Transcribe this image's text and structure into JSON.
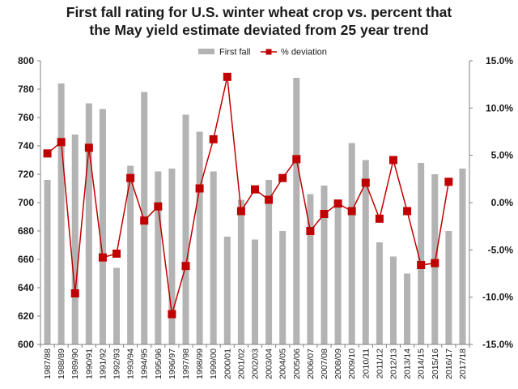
{
  "title": {
    "line1": "First fall rating for U.S. winter wheat crop vs. percent that",
    "line2": "the May yield estimate deviated from 25 year trend"
  },
  "colors": {
    "bar": "#b3b3b3",
    "line": "#c00000",
    "axis": "#808080"
  },
  "chart_data": {
    "type": "bar+line",
    "categories": [
      "1987/88",
      "1988/89",
      "1989/90",
      "1990/91",
      "1991/92",
      "1992/93",
      "1993/94",
      "1994/95",
      "1995/96",
      "1996/97",
      "1997/98",
      "1998/99",
      "1999/00",
      "2000/01",
      "2001/02",
      "2002/03",
      "2003/04",
      "2004/05",
      "2005/06",
      "2006/07",
      "2007/08",
      "2008/09",
      "2009/10",
      "2010/11",
      "2011/12",
      "2012/13",
      "2013/14",
      "2014/15",
      "2015/16",
      "2016/17",
      "2017/18"
    ],
    "series": [
      {
        "name": "First fall",
        "type": "bar",
        "axis": "left",
        "values": [
          716,
          784,
          748,
          770,
          766,
          654,
          726,
          778,
          722,
          724,
          762,
          750,
          722,
          676,
          702,
          674,
          716,
          680,
          788,
          706,
          712,
          700,
          742,
          730,
          672,
          662,
          650,
          728,
          720,
          680,
          724
        ]
      },
      {
        "name": "% deviation",
        "type": "line",
        "axis": "right",
        "values": [
          5.2,
          6.4,
          -9.6,
          5.8,
          -5.8,
          -5.4,
          2.6,
          -1.9,
          -0.4,
          -11.8,
          -6.7,
          1.5,
          6.7,
          13.3,
          -0.9,
          1.4,
          0.3,
          2.6,
          4.6,
          -3.0,
          -1.2,
          -0.1,
          -0.9,
          2.1,
          -1.7,
          4.5,
          -0.9,
          -6.6,
          -6.4,
          2.2,
          null
        ]
      }
    ],
    "left_axis": {
      "ylim": [
        600,
        800
      ],
      "ticks": [
        "600",
        "620",
        "640",
        "660",
        "680",
        "700",
        "720",
        "740",
        "760",
        "780",
        "800"
      ]
    },
    "right_axis": {
      "ylim": [
        -15,
        15
      ],
      "ticks": [
        "-15.0%",
        "-10.0%",
        "-5.0%",
        "0.0%",
        "5.0%",
        "10.0%",
        "15.0%"
      ]
    },
    "legend": {
      "position": "top-center",
      "entries": [
        "First fall",
        "% deviation"
      ]
    },
    "grid": false
  }
}
